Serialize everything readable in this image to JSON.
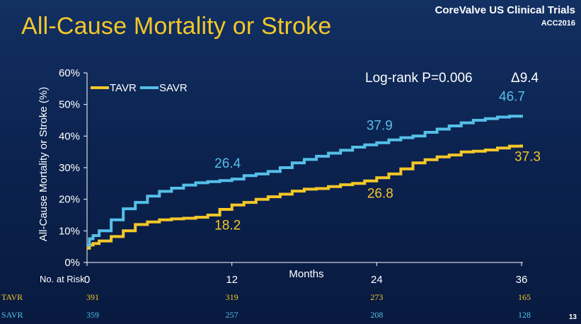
{
  "title": "All-Cause Mortality or Stroke",
  "brand": {
    "line1": "CoreValve US Clinical Trials",
    "line2": "ACC2016"
  },
  "slide_number": "13",
  "colors": {
    "tavr": "#f5c728",
    "savr": "#55bfe8",
    "background": "#0c2350"
  },
  "chart_data": {
    "type": "line",
    "title": "All-Cause Mortality or Stroke",
    "xlabel": "Months",
    "ylabel": "All-Cause Mortality or Stroke (%)",
    "xlim": [
      0,
      36
    ],
    "ylim": [
      0,
      60
    ],
    "x_ticks": [
      0,
      12,
      24,
      36
    ],
    "y_ticks": [
      "0%",
      "10%",
      "20%",
      "30%",
      "40%",
      "50%",
      "60%"
    ],
    "legend_position": "top-left",
    "grid": false,
    "annotation": "Log-rank P=0.006",
    "delta_label": "Δ9.4",
    "series": [
      {
        "name": "TAVR",
        "color": "#f5c728",
        "x": [
          0,
          0.2,
          0.5,
          1,
          2,
          3,
          4,
          5,
          6,
          7,
          8,
          9,
          10,
          11,
          12,
          13,
          14,
          15,
          16,
          17,
          18,
          19,
          20,
          21,
          22,
          23,
          24,
          25,
          26,
          27,
          28,
          29,
          30,
          31,
          32,
          33,
          34,
          35,
          36
        ],
        "values": [
          4.5,
          5.5,
          6.0,
          6.8,
          8.2,
          10.0,
          12.0,
          12.8,
          13.5,
          13.8,
          14.0,
          14.3,
          15.0,
          16.8,
          18.2,
          19.0,
          20.0,
          20.8,
          21.6,
          22.6,
          23.2,
          23.4,
          24.0,
          24.6,
          25.0,
          25.8,
          26.8,
          28.0,
          29.6,
          31.5,
          32.5,
          33.4,
          34.0,
          35.0,
          35.2,
          35.6,
          36.2,
          36.8,
          37.3
        ]
      },
      {
        "name": "SAVR",
        "color": "#55bfe8",
        "x": [
          0,
          0.2,
          0.5,
          1,
          2,
          3,
          4,
          5,
          6,
          7,
          8,
          9,
          10,
          11,
          12,
          13,
          14,
          15,
          16,
          17,
          18,
          19,
          20,
          21,
          22,
          23,
          24,
          25,
          26,
          27,
          28,
          29,
          30,
          31,
          32,
          33,
          34,
          35,
          36
        ],
        "values": [
          5.5,
          7.5,
          8.5,
          10.0,
          13.5,
          17.0,
          19.0,
          21.0,
          22.5,
          23.5,
          24.5,
          25.2,
          25.6,
          25.9,
          26.4,
          27.5,
          28.0,
          28.8,
          30.0,
          31.5,
          32.6,
          33.6,
          34.6,
          35.5,
          36.5,
          37.2,
          37.9,
          38.8,
          39.5,
          40.0,
          41.2,
          42.2,
          43.2,
          44.2,
          45.0,
          45.5,
          46.0,
          46.3,
          46.7
        ]
      }
    ],
    "data_labels": [
      {
        "series": "SAVR",
        "x": 12,
        "text": "26.4"
      },
      {
        "series": "SAVR",
        "x": 24,
        "text": "37.9"
      },
      {
        "series": "SAVR",
        "x": 36,
        "text": "46.7"
      },
      {
        "series": "TAVR",
        "x": 12,
        "text": "18.2"
      },
      {
        "series": "TAVR",
        "x": 24,
        "text": "26.8"
      },
      {
        "series": "TAVR",
        "x": 36,
        "text": "37.3"
      }
    ]
  },
  "risk_table": {
    "title": "No. at Risk",
    "rows": [
      {
        "label": "TAVR",
        "values": [
          "391",
          "319",
          "273",
          "165"
        ]
      },
      {
        "label": "SAVR",
        "values": [
          "359",
          "257",
          "208",
          "128"
        ]
      }
    ]
  }
}
